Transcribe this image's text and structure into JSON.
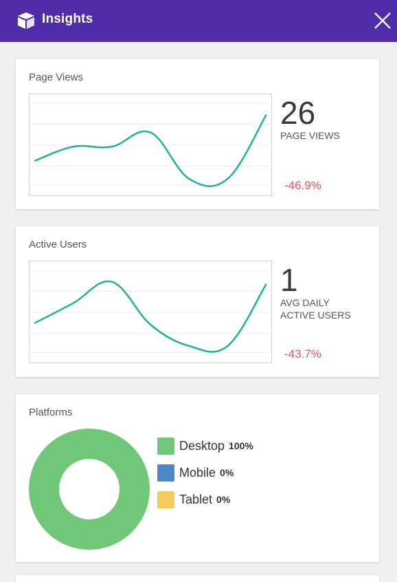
{
  "header": {
    "title": "Insights",
    "logo_icon": "cube-logo-icon",
    "close_icon": "close-icon",
    "background": "#4f2ca9"
  },
  "page_views": {
    "title": "Page Views",
    "value": "26",
    "label": "PAGE VIEWS",
    "delta": "-46.9%"
  },
  "active_users": {
    "title": "Active Users",
    "value": "1",
    "label_line1": "AVG DAILY",
    "label_line2": "ACTIVE USERS",
    "delta": "-43.7%"
  },
  "platforms": {
    "title": "Platforms",
    "items": [
      {
        "name": "Desktop",
        "pct": "100%",
        "color": "#6fc777"
      },
      {
        "name": "Mobile",
        "pct": "0%",
        "color": "#4a88c6"
      },
      {
        "name": "Tablet",
        "pct": "0%",
        "color": "#f2cd5d"
      }
    ]
  },
  "chart_data": [
    {
      "type": "line",
      "title": "Page Views",
      "x": [
        0,
        1,
        2,
        3,
        4,
        5,
        6
      ],
      "values": [
        0.35,
        0.55,
        0.55,
        0.75,
        0.1,
        0.1,
        1.0
      ],
      "color": "#1ab394",
      "grid": true
    },
    {
      "type": "line",
      "title": "Active Users",
      "x": [
        0,
        1,
        2,
        3,
        4,
        5,
        6
      ],
      "values": [
        0.42,
        0.7,
        1.0,
        0.4,
        0.1,
        0.1,
        0.97
      ],
      "color": "#1ab394",
      "grid": true
    },
    {
      "type": "pie",
      "title": "Platforms",
      "categories": [
        "Desktop",
        "Mobile",
        "Tablet"
      ],
      "values": [
        100,
        0,
        0
      ],
      "colors": [
        "#6fc777",
        "#4a88c6",
        "#f2cd5d"
      ]
    }
  ]
}
